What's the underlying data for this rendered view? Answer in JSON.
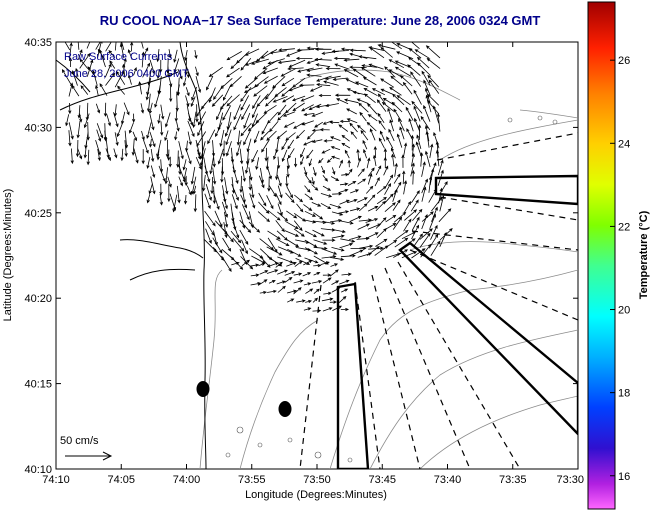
{
  "header": {
    "title": "RU COOL   NOAA−17  Sea Surface Temperature:  June 28, 2006 0324 GMT"
  },
  "inset": {
    "line1": "Raw Surface Currents",
    "line2": "June 28, 2006 0400 GMT"
  },
  "axes": {
    "xlabel": "Longitude (Degrees:Minutes)",
    "ylabel": "Latitude (Degrees:Minutes)",
    "xticks": [
      "74:10",
      "74:05",
      "74:00",
      "73:55",
      "73:50",
      "73:45",
      "73:40",
      "73:35",
      "73:30"
    ],
    "yticks": [
      "40:35",
      "40:30",
      "40:25",
      "40:20",
      "40:15",
      "40:10"
    ]
  },
  "scale": {
    "label": "50 cm/s"
  },
  "colorbar": {
    "label": "Temperature (°C)",
    "ticks": [
      "26",
      "24",
      "22",
      "20",
      "18",
      "16"
    ],
    "range": [
      15.2,
      27.4
    ]
  },
  "colors": {
    "title": "#00008b",
    "land_outline": "#000000",
    "arrows": "#000000",
    "stations": "#000000"
  }
}
